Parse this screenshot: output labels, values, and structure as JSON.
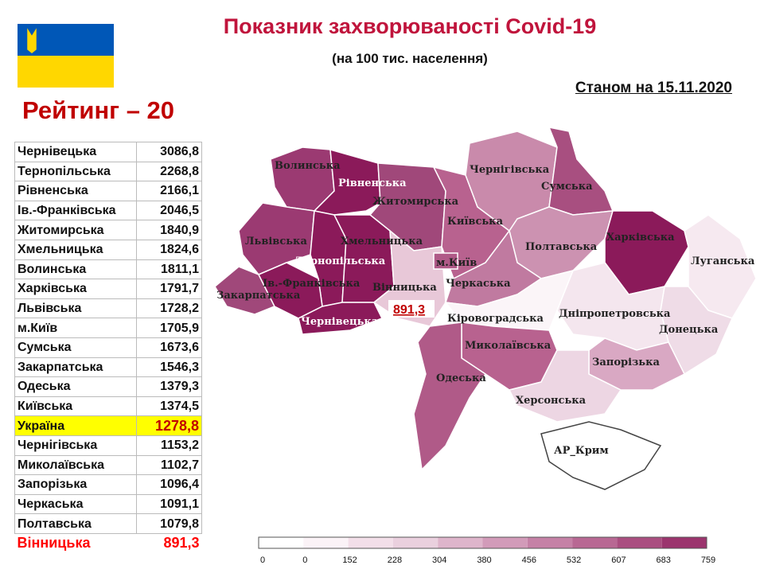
{
  "header": {
    "title": "Показник захворюваності Covid-19",
    "subtitle": "(на 100 тис. населення)",
    "date": "Станом  на 15.11.2020"
  },
  "table": {
    "title": "Рейтинг – 20",
    "rows": [
      [
        "Чернівецька",
        "3086,8"
      ],
      [
        "Тернопільська",
        "2268,8"
      ],
      [
        "Рівненська",
        "2166,1"
      ],
      [
        "Ів.-Франківська",
        "2046,5"
      ],
      [
        "Житомирська",
        "1840,9"
      ],
      [
        "Хмельницька",
        "1824,6"
      ],
      [
        "Волинська",
        "1811,1"
      ],
      [
        "Харківська",
        "1791,7"
      ],
      [
        "Львівська",
        "1728,2"
      ],
      [
        "м.Київ",
        "1705,9"
      ],
      [
        "Сумська",
        "1673,6"
      ],
      [
        "Закарпатська",
        "1546,3"
      ],
      [
        "Одеська",
        "1379,3"
      ],
      [
        "Київська",
        "1374,5"
      ],
      [
        "Україна",
        "1278,8"
      ],
      [
        "Чернігівська",
        "1153,2"
      ],
      [
        "Миколаївська",
        "1102,7"
      ],
      [
        "Запорізька",
        "1096,4"
      ],
      [
        "Черкаська",
        "1091,1"
      ],
      [
        "Полтавська",
        "1079,8"
      ],
      [
        "Вінницька",
        "891,3"
      ]
    ]
  },
  "map": {
    "highlight": "891,3",
    "regions": [
      {
        "name": "Волинська",
        "color": "#9b3a72"
      },
      {
        "name": "Рівненська",
        "color": "#8b1a5a"
      },
      {
        "name": "Житомирська",
        "color": "#a0487a"
      },
      {
        "name": "Львівська",
        "color": "#9b3a72"
      },
      {
        "name": "Тернопільська",
        "color": "#8b1a5a"
      },
      {
        "name": "Хмельницька",
        "color": "#8b1a5a"
      },
      {
        "name": "Закарпатська",
        "color": "#a0487a"
      },
      {
        "name": "Ів.-Франківська",
        "color": "#8b1a5a"
      },
      {
        "name": "Чернівецька",
        "color": "#8b1a5a"
      },
      {
        "name": "Вінницька",
        "color": "#e8c8d8"
      },
      {
        "name": "Київська",
        "color": "#b8628f"
      },
      {
        "name": "м.Київ",
        "color": "#b05a88"
      },
      {
        "name": "Чернігівська",
        "color": "#c98aab"
      },
      {
        "name": "Сумська",
        "color": "#a84f80"
      },
      {
        "name": "Полтавська",
        "color": "#cc92b1"
      },
      {
        "name": "Черкаська",
        "color": "#c07aa0"
      },
      {
        "name": "Харківська",
        "color": "#8b1a5a"
      },
      {
        "name": "Луганська",
        "color": "#f6e9f0"
      },
      {
        "name": "Донецька",
        "color": "#efdce7"
      },
      {
        "name": "Дніпропетровська",
        "color": "#f4e6ee"
      },
      {
        "name": "Кіровоградська",
        "color": "#fbf5f8"
      },
      {
        "name": "Запорізька",
        "color": "#d9a8c3"
      },
      {
        "name": "Миколаївська",
        "color": "#b8628f"
      },
      {
        "name": "Одеська",
        "color": "#b05a88"
      },
      {
        "name": "Херсонська",
        "color": "#edd6e3"
      },
      {
        "name": "АР_Крим",
        "color": "#ffffff"
      }
    ]
  },
  "legend": {
    "ticks": [
      "0",
      "0",
      "152",
      "228",
      "304",
      "380",
      "456",
      "532",
      "607",
      "683",
      "759"
    ]
  }
}
